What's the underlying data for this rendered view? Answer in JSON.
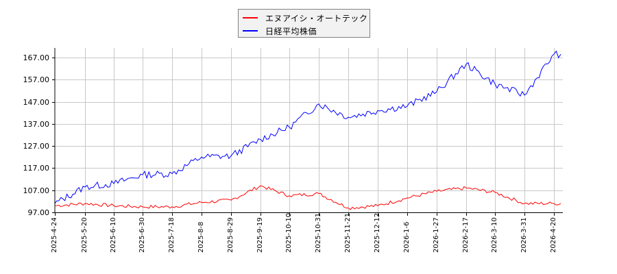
{
  "legend": {
    "items": [
      {
        "label": "エヌアイシ・オートテック",
        "color": "#ff0000"
      },
      {
        "label": "日経平均株価",
        "color": "#0000ff"
      }
    ]
  },
  "axes": {
    "y_ticks": [
      "167.00",
      "157.00",
      "147.00",
      "137.00",
      "127.00",
      "117.00",
      "107.00",
      "97.00"
    ],
    "x_ticks": [
      "2025-4-24",
      "2025-5-20",
      "2025-6-10",
      "2025-6-30",
      "2025-7-18",
      "2025-8-8",
      "2025-8-29",
      "2025-9-19",
      "2025-10-10",
      "2025-10-31",
      "2025-11-21",
      "2025-12-12",
      "2026-1-6",
      "2026-1-27",
      "2026-2-17",
      "2026-3-10",
      "2026-3-31",
      "2026-4-20"
    ]
  },
  "colors": {
    "series_1": "#ff0000",
    "series_2": "#0000ff",
    "grid": "#c8c8c8",
    "axis": "#000000",
    "legend_bg": "#f2f2f2"
  },
  "chart_data": {
    "type": "line",
    "title": "",
    "xlabel": "",
    "ylabel": "",
    "ylim": [
      97,
      171
    ],
    "grid": true,
    "legend_position": "top-center",
    "x": [
      "2025-4-24",
      "2025-5-20",
      "2025-6-10",
      "2025-6-30",
      "2025-7-18",
      "2025-8-8",
      "2025-8-29",
      "2025-9-19",
      "2025-10-10",
      "2025-10-31",
      "2025-11-21",
      "2025-12-12",
      "2026-1-6",
      "2026-1-27",
      "2026-2-17",
      "2026-3-10",
      "2026-3-31",
      "2026-4-20"
    ],
    "series": [
      {
        "name": "エヌアイシ・オートテック",
        "color": "#ff0000",
        "values": [
          100.0,
          101.0,
          100.0,
          99.5,
          99.5,
          101.5,
          102.5,
          109.0,
          104.5,
          105.5,
          99.0,
          100.0,
          103.5,
          106.5,
          108.0,
          106.0,
          101.0,
          101.0
        ]
      },
      {
        "name": "日経平均株価",
        "color": "#0000ff",
        "values": [
          101.0,
          108.5,
          110.0,
          114.0,
          114.5,
          122.0,
          122.5,
          130.0,
          135.5,
          146.0,
          140.0,
          143.0,
          145.0,
          151.5,
          164.0,
          155.0,
          150.0,
          168.5
        ]
      }
    ]
  }
}
